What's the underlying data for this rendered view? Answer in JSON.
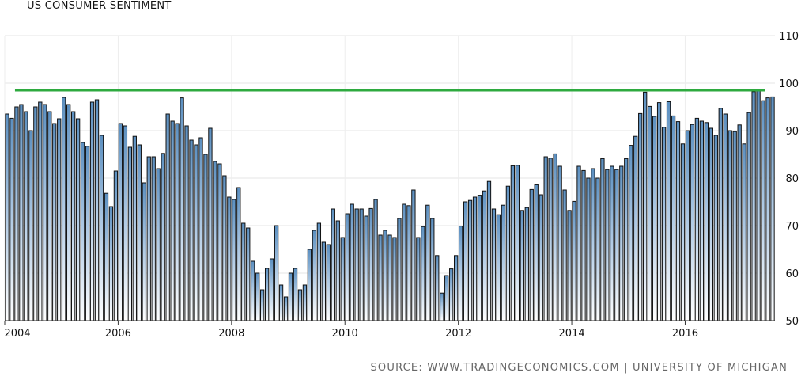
{
  "chart_data": {
    "type": "bar",
    "title": "US CONSUMER SENTIMENT",
    "source": "SOURCE: WWW.TRADINGECONOMICS.COM | UNIVERSITY OF MICHIGAN",
    "x_start": "2004-01",
    "x_end": "2017-03",
    "frequency": "monthly",
    "x_tick_labels": [
      "2004",
      "2006",
      "2008",
      "2010",
      "2012",
      "2014",
      "2016"
    ],
    "y_tick_labels": [
      "50",
      "60",
      "70",
      "80",
      "90",
      "100",
      "110"
    ],
    "ylim": [
      50,
      110
    ],
    "grid": true,
    "reference_line": {
      "value": 98.5,
      "color": "#2eaa3f"
    },
    "bar_fill_top": "#5b8fc0",
    "bar_stroke": "#111111",
    "values": [
      93.5,
      92.6,
      95,
      95.5,
      94,
      90,
      95,
      96,
      95.5,
      94,
      91.5,
      92.5,
      97,
      95.5,
      94,
      92.5,
      87.5,
      86.7,
      96,
      96.5,
      89,
      76.8,
      74,
      81.5,
      91.5,
      91,
      86.5,
      88.8,
      87,
      79,
      84.5,
      84.5,
      82,
      85.2,
      93.5,
      92,
      91.5,
      96.9,
      91,
      88,
      87,
      88.5,
      85,
      90.5,
      83.5,
      83,
      80.5,
      76,
      75.5,
      78,
      70.5,
      69.5,
      62.5,
      60,
      56.5,
      61,
      63,
      70,
      57.5,
      55,
      60,
      61,
      56.5,
      57.5,
      65,
      69,
      70.5,
      66.5,
      66,
      73.5,
      71,
      67.5,
      72.5,
      74.5,
      73.5,
      73.5,
      72,
      73.6,
      75.5,
      68,
      69,
      68,
      67.5,
      71.5,
      74.5,
      74.2,
      77.5,
      67.5,
      69.8,
      74.3,
      71.5,
      63.7,
      55.8,
      59.5,
      60.9,
      63.7,
      69.9,
      75,
      75.3,
      76,
      76.4,
      77.3,
      79.3,
      73.5,
      72.3,
      74.3,
      78.3,
      82.6,
      82.7,
      73.2,
      73.8,
      77.6,
      78.6,
      76.5,
      84.5,
      84.2,
      85.1,
      82.5,
      77.5,
      73.2,
      75.1,
      82.5,
      81.6,
      80,
      82,
      80,
      84.1,
      81.8,
      82.5,
      81.8,
      82.5,
      84.1,
      86.9,
      88.8,
      93.6,
      98.1,
      95.1,
      93,
      95.9,
      90.7,
      96.1,
      93.1,
      91.9,
      87.2,
      90,
      91.3,
      92.6,
      92,
      91.7,
      90.5,
      89,
      94.7,
      93.5,
      90,
      89.8,
      91.2,
      87.2,
      93.8,
      98.2,
      98.5,
      96.3,
      96.9,
      97.1
    ]
  }
}
